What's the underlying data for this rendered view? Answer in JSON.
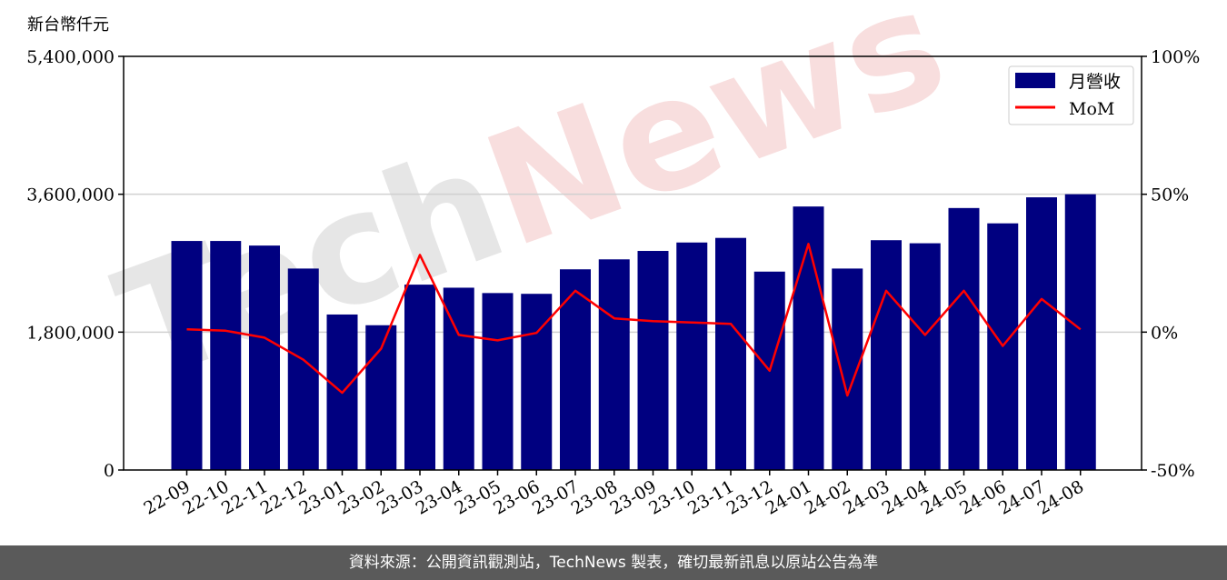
{
  "chart_data": {
    "type": "bar",
    "ylabel": "新台幣仟元",
    "ylim": [
      0,
      5400000
    ],
    "yticks": [
      "0",
      "1,800,000",
      "3,600,000",
      "5,400,000"
    ],
    "y2lim": [
      -50,
      100
    ],
    "y2ticks": [
      "-50%",
      "0%",
      "50%",
      "100%"
    ],
    "grid": true,
    "legend_position": "top-right",
    "categories": [
      "22-09",
      "22-10",
      "22-11",
      "22-12",
      "23-01",
      "23-02",
      "23-03",
      "23-04",
      "23-05",
      "23-06",
      "23-07",
      "23-08",
      "23-09",
      "23-10",
      "23-11",
      "23-12",
      "24-01",
      "24-02",
      "24-03",
      "24-04",
      "24-05",
      "24-06",
      "24-07",
      "24-08"
    ],
    "series": [
      {
        "name": "月營收",
        "type": "bar",
        "axis": "left",
        "color": "#000080",
        "values": [
          2990000,
          2990000,
          2930000,
          2630000,
          2030000,
          1890000,
          2420000,
          2380000,
          2310000,
          2300000,
          2620000,
          2750000,
          2860000,
          2970000,
          3030000,
          2590000,
          3440000,
          2630000,
          3000000,
          2960000,
          3420000,
          3220000,
          3560000,
          3600000
        ]
      },
      {
        "name": "MoM",
        "type": "line",
        "axis": "right",
        "color": "#ff0000",
        "unit": "%",
        "values": [
          1,
          0.5,
          -2,
          -10,
          -22,
          -6,
          28,
          -1,
          -3,
          -0.3,
          15,
          5,
          4,
          3.5,
          3,
          -14,
          32,
          -23,
          15,
          -1,
          15,
          -5,
          12,
          1
        ]
      }
    ]
  },
  "watermark": "TechNews",
  "footer": {
    "text": "資料來源：公開資訊觀測站，TechNews 製表，確切最新訊息以原站公告為準"
  }
}
